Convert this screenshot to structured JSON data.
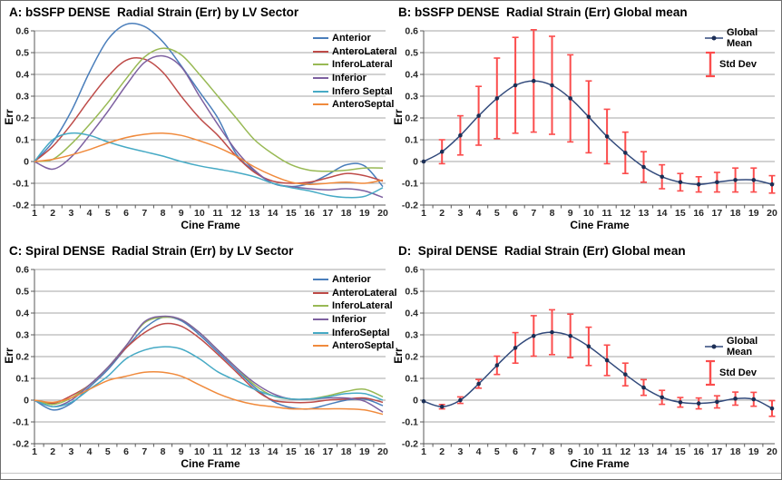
{
  "figure": {
    "background": "#ffffff",
    "border_color": "#6e6e6e",
    "gridline_color": "#a6a6a6",
    "axis_color": "#595959",
    "tick_label_color": "#262626"
  },
  "chart_data": [
    {
      "id": "A",
      "type": "line",
      "title": "A: bSSFP DENSE  Radial Strain (Err) by LV Sector",
      "xlabel": "Cine Frame",
      "ylabel": "Err",
      "ylim": [
        -0.2,
        0.6
      ],
      "ytick_step": 0.1,
      "grid": true,
      "legend_position": "right-top",
      "x": [
        1,
        2,
        3,
        4,
        5,
        6,
        7,
        8,
        9,
        10,
        11,
        12,
        13,
        14,
        15,
        16,
        17,
        18,
        19,
        20
      ],
      "series": [
        {
          "name": "Anterior",
          "color": "#4a7ebb",
          "values": [
            0,
            0.09,
            0.23,
            0.41,
            0.56,
            0.63,
            0.62,
            0.55,
            0.44,
            0.32,
            0.2,
            0.035,
            -0.045,
            -0.1,
            -0.115,
            -0.1,
            -0.06,
            -0.015,
            -0.02,
            -0.115
          ]
        },
        {
          "name": "AnteroLateral",
          "color": "#be4b48",
          "values": [
            0,
            0.07,
            0.17,
            0.285,
            0.39,
            0.465,
            0.47,
            0.41,
            0.3,
            0.2,
            0.12,
            0.025,
            -0.05,
            -0.09,
            -0.1,
            -0.095,
            -0.075,
            -0.055,
            -0.065,
            -0.09
          ]
        },
        {
          "name": "InferoLateral",
          "color": "#98b954",
          "values": [
            0,
            0.01,
            0.08,
            0.17,
            0.27,
            0.38,
            0.48,
            0.52,
            0.49,
            0.4,
            0.3,
            0.2,
            0.1,
            0.035,
            -0.015,
            -0.04,
            -0.045,
            -0.04,
            -0.03,
            -0.03
          ]
        },
        {
          "name": "Inferior",
          "color": "#7d60a0",
          "values": [
            0,
            -0.035,
            0.02,
            0.12,
            0.23,
            0.35,
            0.455,
            0.485,
            0.435,
            0.3,
            0.17,
            0.05,
            -0.04,
            -0.1,
            -0.115,
            -0.125,
            -0.13,
            -0.125,
            -0.135,
            -0.165
          ]
        },
        {
          "name": "Infero Septal",
          "color": "#46aac5",
          "values": [
            0,
            0.1,
            0.13,
            0.12,
            0.09,
            0.065,
            0.045,
            0.025,
            0.0,
            -0.02,
            -0.035,
            -0.05,
            -0.07,
            -0.1,
            -0.12,
            -0.135,
            -0.155,
            -0.165,
            -0.16,
            -0.12
          ]
        },
        {
          "name": "AnteroSeptal",
          "color": "#f08a3c",
          "values": [
            0,
            0.01,
            0.03,
            0.055,
            0.085,
            0.11,
            0.125,
            0.13,
            0.12,
            0.095,
            0.065,
            0.025,
            -0.025,
            -0.065,
            -0.095,
            -0.105,
            -0.1,
            -0.095,
            -0.1,
            -0.085
          ]
        }
      ]
    },
    {
      "id": "B",
      "type": "line-errorbar",
      "title": "B: bSSFP DENSE  Radial Strain (Err) Global mean",
      "xlabel": "Cine Frame",
      "ylabel": "Err",
      "ylim": [
        -0.2,
        0.6
      ],
      "ytick_step": 0.1,
      "grid": true,
      "legend_position": "right-top",
      "x": [
        1,
        2,
        3,
        4,
        5,
        6,
        7,
        8,
        9,
        10,
        11,
        12,
        13,
        14,
        15,
        16,
        17,
        18,
        19,
        20
      ],
      "series": [
        {
          "name": "Global Mean",
          "color": "#31497b",
          "marker": "circle",
          "marker_color": "#1c2f55",
          "values": [
            0,
            0.045,
            0.12,
            0.21,
            0.29,
            0.35,
            0.37,
            0.35,
            0.29,
            0.205,
            0.115,
            0.04,
            -0.025,
            -0.07,
            -0.095,
            -0.105,
            -0.095,
            -0.085,
            -0.085,
            -0.105
          ]
        }
      ],
      "errorbars": {
        "name": "Std Dev",
        "color": "#fb4d4d",
        "std": [
          0,
          0.055,
          0.09,
          0.135,
          0.185,
          0.22,
          0.235,
          0.225,
          0.2,
          0.165,
          0.125,
          0.095,
          0.07,
          0.055,
          0.04,
          0.035,
          0.045,
          0.055,
          0.055,
          0.04
        ]
      }
    },
    {
      "id": "C",
      "type": "line",
      "title": "C: Spiral DENSE  Radial Strain (Err) by LV Sector",
      "xlabel": "Cine Frame",
      "ylabel": "Err",
      "ylim": [
        -0.2,
        0.6
      ],
      "ytick_step": 0.1,
      "grid": true,
      "legend_position": "right-top",
      "x": [
        1,
        2,
        3,
        4,
        5,
        6,
        7,
        8,
        9,
        10,
        11,
        12,
        13,
        14,
        15,
        16,
        17,
        18,
        19,
        20
      ],
      "series": [
        {
          "name": "Anterior",
          "color": "#4a7ebb",
          "values": [
            0,
            -0.045,
            -0.015,
            0.06,
            0.14,
            0.24,
            0.33,
            0.38,
            0.365,
            0.3,
            0.22,
            0.14,
            0.06,
            -0.005,
            -0.035,
            -0.04,
            -0.02,
            0.0,
            0.005,
            -0.025
          ]
        },
        {
          "name": "AnteroLateral",
          "color": "#be4b48",
          "values": [
            0,
            -0.015,
            0.02,
            0.07,
            0.15,
            0.24,
            0.31,
            0.35,
            0.34,
            0.285,
            0.21,
            0.13,
            0.05,
            0.0,
            -0.01,
            -0.01,
            0.0,
            0.005,
            0.01,
            -0.01
          ]
        },
        {
          "name": "InferoLateral",
          "color": "#98b954",
          "values": [
            0,
            -0.02,
            0.01,
            0.07,
            0.15,
            0.25,
            0.355,
            0.38,
            0.37,
            0.31,
            0.23,
            0.15,
            0.07,
            0.02,
            0.005,
            0.005,
            0.02,
            0.04,
            0.05,
            0.015
          ]
        },
        {
          "name": "Inferior",
          "color": "#7d60a0",
          "values": [
            0,
            -0.03,
            0.0,
            0.07,
            0.15,
            0.25,
            0.36,
            0.385,
            0.37,
            0.31,
            0.23,
            0.15,
            0.08,
            0.03,
            0.005,
            0.005,
            0.01,
            0.01,
            -0.005,
            -0.055
          ]
        },
        {
          "name": "InferoSeptal",
          "color": "#46aac5",
          "values": [
            0,
            -0.03,
            -0.01,
            0.05,
            0.11,
            0.19,
            0.23,
            0.245,
            0.235,
            0.19,
            0.13,
            0.09,
            0.05,
            0.02,
            0.005,
            0.005,
            0.015,
            0.03,
            0.03,
            0.0
          ]
        },
        {
          "name": "AnteroSeptal",
          "color": "#f08a3c",
          "values": [
            0,
            -0.01,
            0.01,
            0.05,
            0.09,
            0.11,
            0.128,
            0.128,
            0.11,
            0.07,
            0.03,
            0.0,
            -0.02,
            -0.03,
            -0.04,
            -0.04,
            -0.04,
            -0.04,
            -0.045,
            -0.065
          ]
        }
      ]
    },
    {
      "id": "D",
      "type": "line-errorbar",
      "title": "D:  Spiral DENSE  Radial Strain (Err) Global mean",
      "xlabel": "Cine Frame",
      "ylabel": "Err",
      "ylim": [
        -0.2,
        0.6
      ],
      "ytick_step": 0.1,
      "grid": true,
      "legend_position": "right-middle",
      "x": [
        1,
        2,
        3,
        4,
        5,
        6,
        7,
        8,
        9,
        10,
        11,
        12,
        13,
        14,
        15,
        16,
        17,
        18,
        19,
        20
      ],
      "series": [
        {
          "name": "Global Mean",
          "color": "#31497b",
          "marker": "circle",
          "marker_color": "#1c2f55",
          "values": [
            -0.005,
            -0.03,
            0.0,
            0.075,
            0.16,
            0.24,
            0.295,
            0.312,
            0.295,
            0.247,
            0.183,
            0.118,
            0.058,
            0.013,
            -0.01,
            -0.015,
            -0.008,
            0.007,
            0.004,
            -0.038
          ]
        }
      ],
      "errorbars": {
        "name": "Std Dev",
        "color": "#fb4d4d",
        "std": [
          0,
          0.01,
          0.015,
          0.02,
          0.042,
          0.07,
          0.093,
          0.103,
          0.1,
          0.088,
          0.07,
          0.052,
          0.036,
          0.032,
          0.022,
          0.025,
          0.028,
          0.03,
          0.032,
          0.036
        ]
      }
    }
  ]
}
